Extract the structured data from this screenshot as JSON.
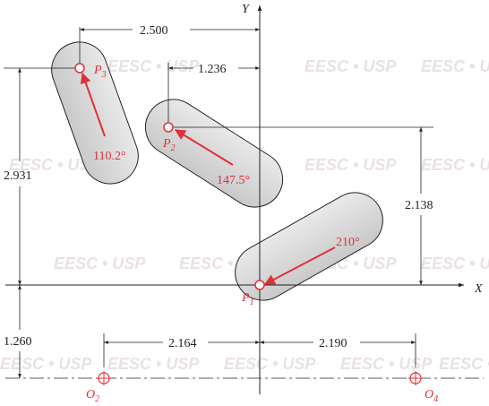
{
  "watermark": "EESC • USP",
  "axes": {
    "y_label": "Y",
    "x_label": "X"
  },
  "points": {
    "p1": {
      "letter": "P",
      "sub": "1"
    },
    "p2": {
      "letter": "P",
      "sub": "2"
    },
    "p3": {
      "letter": "P",
      "sub": "3"
    },
    "o2": {
      "letter": "O",
      "sub": "2"
    },
    "o4": {
      "letter": "O",
      "sub": "4"
    }
  },
  "dimensions": {
    "d_2500": "2.500",
    "d_1236": "1.236",
    "d_2931": "2.931",
    "d_2138": "2.138",
    "d_1260": "1.260",
    "d_2164": "2.164",
    "d_2190": "2.190"
  },
  "angles": {
    "a1": "210°",
    "a2": "147.5°",
    "a3": "110.2°"
  },
  "colors": {
    "accent": "#e0303a",
    "line": "#222222",
    "slot_fill": "#d6d6d6"
  }
}
